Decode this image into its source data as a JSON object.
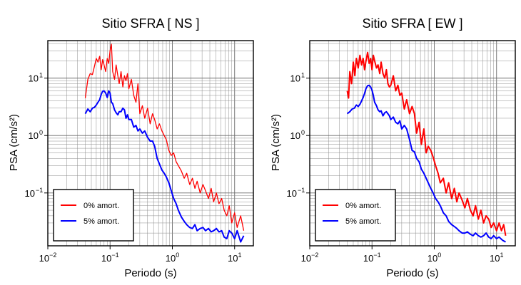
{
  "chart_data": [
    {
      "type": "line",
      "title": "Sitio SFRA [ NS ]",
      "xlabel": "Periodo (s)",
      "ylabel": "PSA (cm/s²)",
      "xscale": "log",
      "yscale": "log",
      "xlim": [
        0.01,
        20
      ],
      "ylim": [
        0.012,
        45
      ],
      "grid": true,
      "legend_position": "bottom-left",
      "x_ticks": [
        {
          "value": 0.01,
          "base": "10",
          "exp": "−2"
        },
        {
          "value": 0.1,
          "base": "10",
          "exp": "−1"
        },
        {
          "value": 1,
          "base": "10",
          "exp": "0"
        },
        {
          "value": 10,
          "base": "10",
          "exp": "1"
        }
      ],
      "y_ticks": [
        {
          "value": 0.1,
          "base": "10",
          "exp": "−1"
        },
        {
          "value": 1,
          "base": "10",
          "exp": "0"
        },
        {
          "value": 10,
          "base": "10",
          "exp": "1"
        }
      ],
      "series": [
        {
          "name": "0% amort.",
          "color": "#ff0000",
          "line_width": 1.3,
          "x": [
            0.04,
            0.044,
            0.048,
            0.052,
            0.056,
            0.06,
            0.064,
            0.068,
            0.072,
            0.076,
            0.08,
            0.085,
            0.09,
            0.095,
            0.1,
            0.105,
            0.11,
            0.118,
            0.125,
            0.133,
            0.14,
            0.15,
            0.16,
            0.17,
            0.18,
            0.19,
            0.2,
            0.22,
            0.24,
            0.26,
            0.28,
            0.3,
            0.33,
            0.36,
            0.4,
            0.44,
            0.48,
            0.52,
            0.57,
            0.62,
            0.68,
            0.74,
            0.8,
            0.88,
            0.96,
            1.05,
            1.15,
            1.25,
            1.4,
            1.55,
            1.7,
            1.9,
            2.1,
            2.3,
            2.5,
            2.8,
            3.1,
            3.4,
            3.8,
            4.2,
            4.6,
            5.1,
            5.6,
            6.2,
            6.8,
            7.5,
            8.2,
            9,
            10,
            11,
            12.5,
            14
          ],
          "y": [
            4.5,
            9.5,
            12,
            11.5,
            16,
            22,
            19,
            24,
            14,
            21,
            17,
            13,
            22,
            18,
            30,
            39,
            13,
            9.5,
            17,
            11,
            8,
            13,
            7,
            11,
            9,
            12,
            6.5,
            9.5,
            5,
            3.8,
            8,
            2.4,
            3.3,
            2.0,
            3.0,
            1.6,
            2.4,
            1.9,
            1.3,
            1.6,
            1.2,
            1.0,
            0.85,
            0.55,
            0.45,
            0.5,
            0.35,
            0.3,
            0.24,
            0.18,
            0.22,
            0.14,
            0.18,
            0.12,
            0.16,
            0.1,
            0.14,
            0.11,
            0.08,
            0.12,
            0.07,
            0.1,
            0.065,
            0.08,
            0.05,
            0.04,
            0.06,
            0.03,
            0.045,
            0.025,
            0.04,
            0.022
          ]
        },
        {
          "name": "5% amort.",
          "color": "#0000ff",
          "line_width": 2.0,
          "x": [
            0.04,
            0.044,
            0.048,
            0.052,
            0.056,
            0.06,
            0.064,
            0.068,
            0.072,
            0.076,
            0.08,
            0.085,
            0.09,
            0.095,
            0.1,
            0.105,
            0.11,
            0.118,
            0.125,
            0.133,
            0.14,
            0.15,
            0.16,
            0.17,
            0.18,
            0.19,
            0.2,
            0.22,
            0.24,
            0.26,
            0.28,
            0.3,
            0.33,
            0.36,
            0.4,
            0.44,
            0.48,
            0.52,
            0.57,
            0.62,
            0.68,
            0.74,
            0.8,
            0.88,
            0.96,
            1.05,
            1.15,
            1.25,
            1.4,
            1.55,
            1.7,
            1.9,
            2.1,
            2.3,
            2.5,
            2.8,
            3.1,
            3.4,
            3.8,
            4.2,
            4.6,
            5.1,
            5.6,
            6.2,
            6.8,
            7.5,
            8.2,
            9,
            10,
            11,
            12.5,
            14
          ],
          "y": [
            2.4,
            2.9,
            2.6,
            3.0,
            3.1,
            3.4,
            3.8,
            4.2,
            5.2,
            5.9,
            6.0,
            5.5,
            4.6,
            6.0,
            5.5,
            3.8,
            3.6,
            2.8,
            2.5,
            2.3,
            2.6,
            2.6,
            3.0,
            2.8,
            2.0,
            2.3,
            1.9,
            1.9,
            1.4,
            1.5,
            1.2,
            1.3,
            1.1,
            1.2,
            0.93,
            0.8,
            0.8,
            0.65,
            0.4,
            0.32,
            0.25,
            0.22,
            0.19,
            0.15,
            0.11,
            0.08,
            0.065,
            0.05,
            0.038,
            0.032,
            0.028,
            0.025,
            0.024,
            0.028,
            0.022,
            0.024,
            0.025,
            0.022,
            0.024,
            0.021,
            0.022,
            0.024,
            0.021,
            0.022,
            0.017,
            0.016,
            0.022,
            0.02,
            0.016,
            0.022,
            0.014,
            0.018
          ]
        }
      ]
    },
    {
      "type": "line",
      "title": "Sitio SFRA [ EW ]",
      "xlabel": "Periodo (s)",
      "ylabel": "PSA (cm/s²)",
      "xscale": "log",
      "yscale": "log",
      "xlim": [
        0.01,
        20
      ],
      "ylim": [
        0.012,
        45
      ],
      "grid": true,
      "legend_position": "bottom-left",
      "x_ticks": [
        {
          "value": 0.01,
          "base": "10",
          "exp": "−2"
        },
        {
          "value": 0.1,
          "base": "10",
          "exp": "−1"
        },
        {
          "value": 1,
          "base": "10",
          "exp": "0"
        },
        {
          "value": 10,
          "base": "10",
          "exp": "1"
        }
      ],
      "y_ticks": [
        {
          "value": 0.1,
          "base": "10",
          "exp": "−1"
        },
        {
          "value": 1,
          "base": "10",
          "exp": "0"
        },
        {
          "value": 10,
          "base": "10",
          "exp": "1"
        }
      ],
      "series": [
        {
          "name": "0% amort.",
          "color": "#ff0000",
          "line_width": 2.0,
          "x": [
            0.04,
            0.042,
            0.044,
            0.047,
            0.05,
            0.053,
            0.056,
            0.06,
            0.064,
            0.068,
            0.072,
            0.076,
            0.08,
            0.085,
            0.09,
            0.095,
            0.1,
            0.105,
            0.11,
            0.118,
            0.125,
            0.133,
            0.14,
            0.15,
            0.16,
            0.17,
            0.18,
            0.19,
            0.2,
            0.22,
            0.24,
            0.26,
            0.28,
            0.3,
            0.33,
            0.36,
            0.4,
            0.44,
            0.48,
            0.52,
            0.57,
            0.62,
            0.68,
            0.74,
            0.8,
            0.88,
            0.96,
            1.05,
            1.15,
            1.25,
            1.4,
            1.55,
            1.7,
            1.9,
            2.1,
            2.3,
            2.5,
            2.8,
            3.1,
            3.4,
            3.8,
            4.2,
            4.6,
            5.1,
            5.6,
            6.2,
            6.8,
            7.5,
            8.2,
            9,
            10,
            11,
            12,
            13,
            14
          ],
          "y": [
            6,
            4.5,
            13,
            8,
            19,
            11,
            22,
            15,
            25,
            17,
            22,
            14,
            20,
            28,
            18,
            22,
            14,
            25,
            20,
            15,
            17,
            12,
            19,
            12,
            10,
            14,
            8,
            7,
            7.5,
            11,
            6,
            7.5,
            5,
            5.5,
            2.9,
            4.2,
            2.4,
            3.2,
            2.4,
            1.1,
            1.7,
            0.7,
            1.3,
            0.5,
            0.65,
            0.55,
            0.42,
            0.3,
            0.22,
            0.15,
            0.18,
            0.1,
            0.15,
            0.08,
            0.12,
            0.07,
            0.1,
            0.075,
            0.055,
            0.08,
            0.05,
            0.04,
            0.06,
            0.035,
            0.05,
            0.03,
            0.04,
            0.035,
            0.025,
            0.03,
            0.022,
            0.03,
            0.022,
            0.028,
            0.018
          ]
        },
        {
          "name": "5% amort.",
          "color": "#0000ff",
          "line_width": 2.0,
          "x": [
            0.04,
            0.044,
            0.048,
            0.052,
            0.056,
            0.06,
            0.064,
            0.068,
            0.072,
            0.076,
            0.08,
            0.085,
            0.09,
            0.095,
            0.1,
            0.105,
            0.11,
            0.118,
            0.125,
            0.133,
            0.14,
            0.15,
            0.16,
            0.17,
            0.18,
            0.19,
            0.2,
            0.22,
            0.24,
            0.26,
            0.28,
            0.3,
            0.33,
            0.36,
            0.4,
            0.44,
            0.48,
            0.52,
            0.57,
            0.62,
            0.68,
            0.74,
            0.8,
            0.88,
            0.96,
            1.05,
            1.15,
            1.25,
            1.4,
            1.55,
            1.7,
            1.9,
            2.1,
            2.3,
            2.5,
            2.8,
            3.1,
            3.4,
            3.8,
            4.2,
            4.6,
            5.1,
            5.6,
            6.2,
            6.8,
            7.5,
            8.2,
            9,
            10,
            11,
            12.5,
            14
          ],
          "y": [
            2.4,
            2.6,
            2.9,
            3.0,
            3.4,
            3.2,
            3.5,
            4.0,
            4.6,
            5.4,
            6.6,
            7.4,
            7.5,
            7.0,
            6.2,
            5.0,
            3.8,
            3.3,
            2.8,
            2.6,
            2.7,
            2.2,
            2.5,
            2.6,
            2.4,
            2.2,
            1.9,
            2.1,
            1.7,
            1.6,
            1.8,
            1.3,
            1.5,
            1.3,
            0.85,
            0.55,
            0.52,
            0.4,
            0.35,
            0.26,
            0.22,
            0.18,
            0.15,
            0.12,
            0.1,
            0.08,
            0.07,
            0.06,
            0.045,
            0.04,
            0.032,
            0.028,
            0.026,
            0.024,
            0.022,
            0.02,
            0.02,
            0.021,
            0.019,
            0.018,
            0.02,
            0.018,
            0.017,
            0.018,
            0.02,
            0.017,
            0.016,
            0.018,
            0.016,
            0.017,
            0.015,
            0.014
          ]
        }
      ]
    }
  ]
}
